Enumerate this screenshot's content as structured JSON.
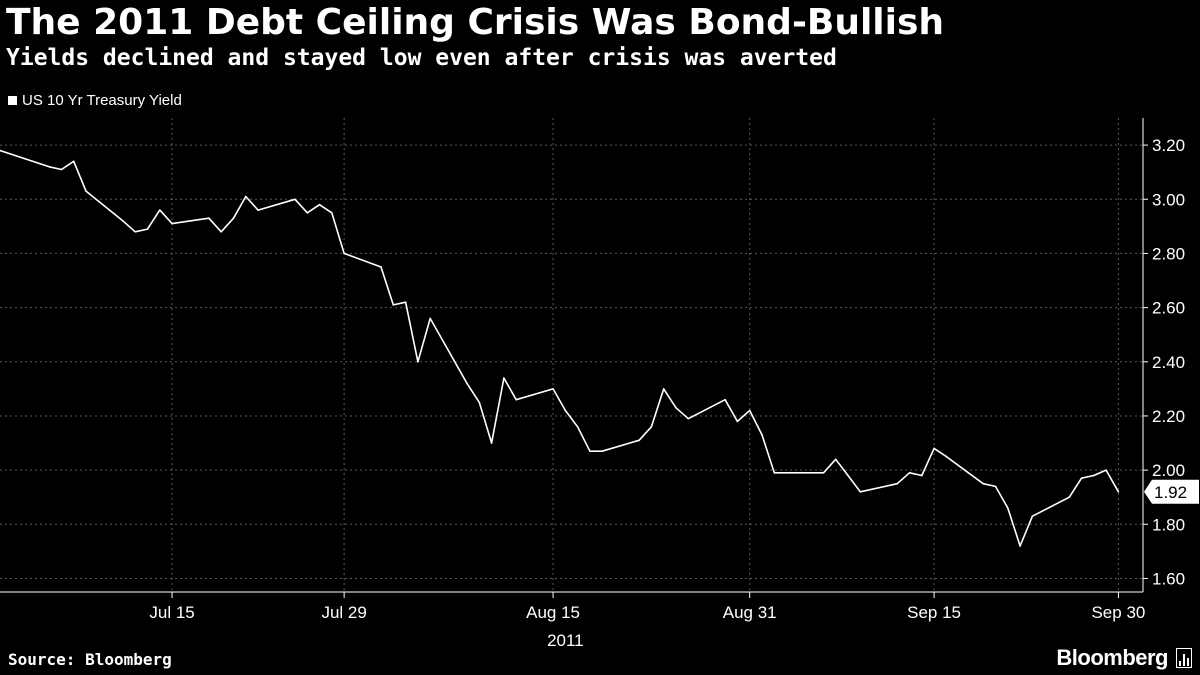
{
  "header": {
    "title": "The 2011 Debt Ceiling Crisis Was Bond-Bullish",
    "subtitle": "Yields declined and stayed low even after crisis was averted"
  },
  "footer": {
    "source": "Source: Bloomberg",
    "brand": "Bloomberg"
  },
  "colors": {
    "background": "#000000",
    "line": "#ffffff",
    "grid": "#5a5a5a"
  },
  "chart_data": {
    "type": "line",
    "title": "The 2011 Debt Ceiling Crisis Was Bond-Bullish",
    "subtitle": "Yields declined and stayed low even after crisis was averted",
    "xlabel": "2011",
    "ylabel": "",
    "ylim": [
      1.55,
      3.3
    ],
    "y_ticks": [
      "3.20",
      "3.00",
      "2.80",
      "2.60",
      "2.40",
      "2.20",
      "2.00",
      "1.80",
      "1.60"
    ],
    "x_ticks": [
      {
        "date": "2011-07-15",
        "label": "Jul 15"
      },
      {
        "date": "2011-07-29",
        "label": "Jul 29"
      },
      {
        "date": "2011-08-15",
        "label": "Aug 15"
      },
      {
        "date": "2011-08-31",
        "label": "Aug 31"
      },
      {
        "date": "2011-09-15",
        "label": "Sep 15"
      },
      {
        "date": "2011-09-30",
        "label": "Sep 30"
      }
    ],
    "x_range": [
      "2011-07-01",
      "2011-10-02"
    ],
    "grid": true,
    "legend_position": "top-left",
    "last_value_label": "1.92",
    "series": [
      {
        "name": "US 10 Yr Treasury Yield",
        "x": [
          "2011-07-01",
          "2011-07-05",
          "2011-07-06",
          "2011-07-07",
          "2011-07-08",
          "2011-07-11",
          "2011-07-12",
          "2011-07-13",
          "2011-07-14",
          "2011-07-15",
          "2011-07-18",
          "2011-07-19",
          "2011-07-20",
          "2011-07-21",
          "2011-07-22",
          "2011-07-25",
          "2011-07-26",
          "2011-07-27",
          "2011-07-28",
          "2011-07-29",
          "2011-08-01",
          "2011-08-02",
          "2011-08-03",
          "2011-08-04",
          "2011-08-05",
          "2011-08-08",
          "2011-08-09",
          "2011-08-10",
          "2011-08-11",
          "2011-08-12",
          "2011-08-15",
          "2011-08-16",
          "2011-08-17",
          "2011-08-18",
          "2011-08-19",
          "2011-08-22",
          "2011-08-23",
          "2011-08-24",
          "2011-08-25",
          "2011-08-26",
          "2011-08-29",
          "2011-08-30",
          "2011-08-31",
          "2011-09-01",
          "2011-09-02",
          "2011-09-06",
          "2011-09-07",
          "2011-09-08",
          "2011-09-09",
          "2011-09-12",
          "2011-09-13",
          "2011-09-14",
          "2011-09-15",
          "2011-09-16",
          "2011-09-19",
          "2011-09-20",
          "2011-09-21",
          "2011-09-22",
          "2011-09-23",
          "2011-09-26",
          "2011-09-27",
          "2011-09-28",
          "2011-09-29",
          "2011-09-30"
        ],
        "values": [
          3.18,
          3.12,
          3.11,
          3.14,
          3.03,
          2.92,
          2.88,
          2.89,
          2.96,
          2.91,
          2.93,
          2.88,
          2.93,
          3.01,
          2.96,
          3.0,
          2.95,
          2.98,
          2.95,
          2.8,
          2.75,
          2.61,
          2.62,
          2.4,
          2.56,
          2.32,
          2.25,
          2.1,
          2.34,
          2.26,
          2.3,
          2.22,
          2.16,
          2.07,
          2.07,
          2.11,
          2.16,
          2.3,
          2.23,
          2.19,
          2.26,
          2.18,
          2.22,
          2.13,
          1.99,
          1.99,
          2.04,
          1.98,
          1.92,
          1.95,
          1.99,
          1.98,
          2.08,
          2.05,
          1.95,
          1.94,
          1.86,
          1.72,
          1.83,
          1.9,
          1.97,
          1.98,
          2.0,
          1.92
        ]
      }
    ]
  }
}
